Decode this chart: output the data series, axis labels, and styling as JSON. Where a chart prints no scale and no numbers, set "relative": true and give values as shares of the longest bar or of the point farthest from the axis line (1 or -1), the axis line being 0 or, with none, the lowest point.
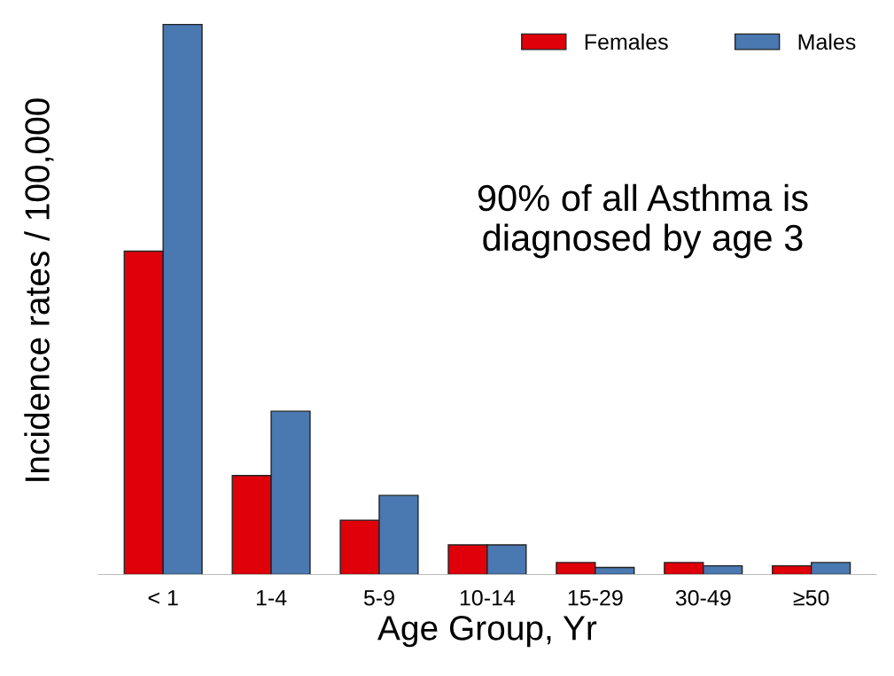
{
  "chart_data": {
    "type": "bar",
    "relative": true,
    "xlabel": "Age Group, Yr",
    "ylabel": "Incidence rates / 100,000",
    "categories": [
      "< 1",
      "1-4",
      "5-9",
      "10-14",
      "15-29",
      "30-49",
      "≥50"
    ],
    "series": [
      {
        "name": "Females",
        "color": "#e0000a",
        "values": [
          0.588,
          0.18,
          0.099,
          0.054,
          0.022,
          0.022,
          0.016
        ]
      },
      {
        "name": "Males",
        "color": "#4a78b0",
        "values": [
          1.0,
          0.297,
          0.144,
          0.054,
          0.013,
          0.016,
          0.022
        ]
      }
    ],
    "annotations": [
      "90% of all Asthma is\ndiagnosed by age 3"
    ],
    "legend": "top right",
    "grid": false
  }
}
